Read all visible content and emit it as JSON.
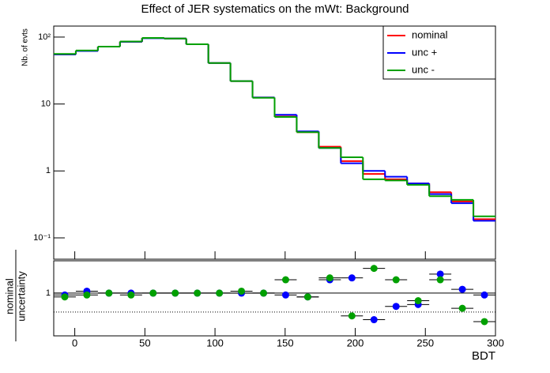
{
  "chart_data": [
    {
      "type": "histogram",
      "title": "Effect of JER systematics on the mWt: Background",
      "y_label": "Nb. of evts",
      "log_y": true,
      "bins": [
        -15,
        0.75,
        16.5,
        32.25,
        48,
        63.75,
        79.5,
        95.25,
        111,
        126.75,
        142.5,
        158.25,
        174,
        189.75,
        205.5,
        221.25,
        237,
        252.75,
        268.5,
        284.25,
        300
      ],
      "series": [
        {
          "name": "nominal",
          "color": "#ff0000",
          "values": [
            55,
            62,
            72,
            85,
            97,
            95,
            78,
            41,
            22,
            12.5,
            6.8,
            3.8,
            2.3,
            1.4,
            0.9,
            0.75,
            0.65,
            0.48,
            0.35,
            0.19
          ]
        },
        {
          "name": "unc +",
          "color": "#0000ff",
          "values": [
            55,
            62,
            72,
            85,
            96,
            95,
            78,
            41,
            22,
            12.5,
            6.9,
            3.9,
            2.2,
            1.3,
            1.0,
            0.82,
            0.65,
            0.45,
            0.33,
            0.18
          ]
        },
        {
          "name": "unc -",
          "color": "#00a000",
          "values": [
            56,
            63,
            72,
            86,
            97,
            95,
            78,
            41,
            22,
            12.4,
            6.4,
            3.8,
            2.2,
            1.6,
            0.75,
            0.72,
            0.62,
            0.42,
            0.37,
            0.21
          ]
        }
      ],
      "xlim": [
        -15,
        300
      ],
      "xticks": [
        0,
        50,
        100,
        150,
        200,
        250,
        300
      ],
      "ylim": [
        0.048,
        146
      ],
      "yticks": [
        {
          "value": 0.1,
          "label": "10⁻¹"
        },
        1,
        10,
        {
          "value": 100,
          "label": "10²"
        }
      ],
      "legend": "top-right"
    },
    {
      "type": "scatter",
      "y_label": [
        "nominal",
        "uncertainty"
      ],
      "x_label": "BDT",
      "bins": [
        -15,
        0.75,
        16.5,
        32.25,
        48,
        63.75,
        79.5,
        95.25,
        111,
        126.75,
        142.5,
        158.25,
        174,
        189.75,
        205.5,
        221.25,
        237,
        252.75,
        268.5,
        284.25,
        300
      ],
      "series": [
        {
          "color": "#0000ff",
          "values": [
            0.99,
            1.01,
            1.0,
            1.0,
            1.0,
            1.0,
            1.0,
            1.0,
            1.0,
            1.0,
            0.99,
            0.98,
            1.07,
            1.08,
            0.86,
            0.93,
            0.94,
            1.1,
            1.02,
            0.99
          ]
        },
        {
          "color": "#00a000",
          "values": [
            0.98,
            0.99,
            1.0,
            0.99,
            1.0,
            1.0,
            1.0,
            1.0,
            1.01,
            1.0,
            1.07,
            0.98,
            1.08,
            0.88,
            1.13,
            1.07,
            0.96,
            1.07,
            0.92,
            0.85
          ]
        }
      ],
      "xlim": [
        -15,
        300
      ],
      "xticks": [
        0,
        50,
        100,
        150,
        200,
        250,
        300
      ],
      "ylim": [
        0.775,
        1.17
      ],
      "yticks": [
        1
      ],
      "ref_line": 0.9
    }
  ]
}
